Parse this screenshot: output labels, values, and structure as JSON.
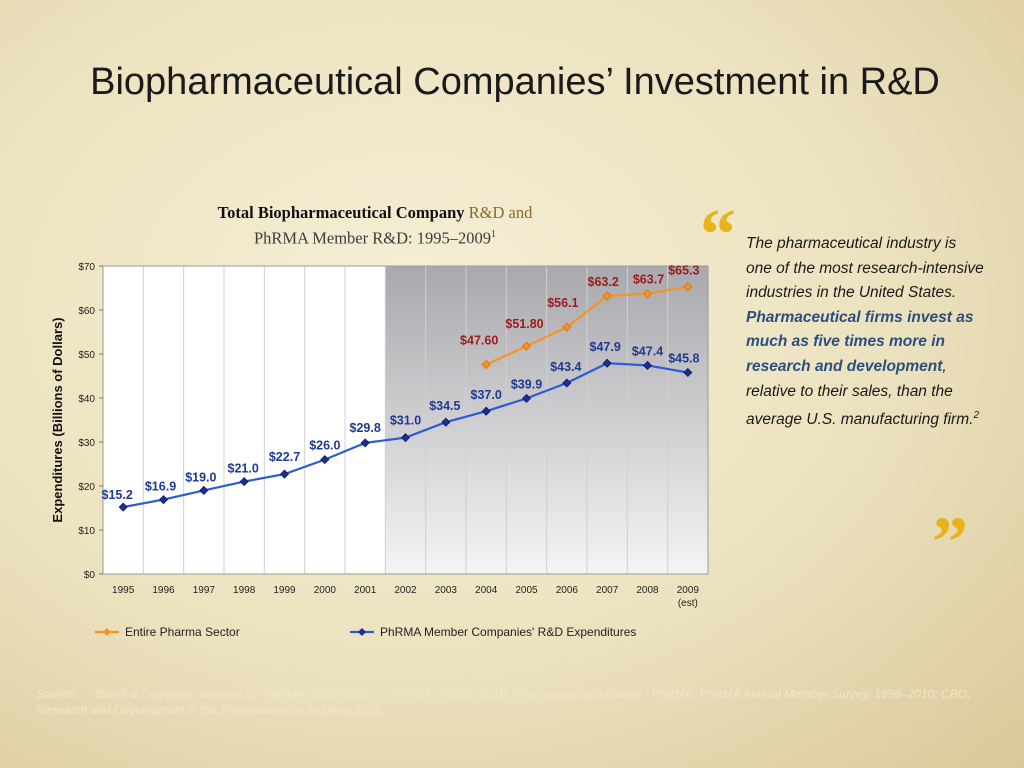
{
  "slide": {
    "title": "Biopharmaceutical Companies’ Investment in R&D"
  },
  "chart_header": {
    "line1_bold": "Total Biopharmaceutical Company",
    "line1_accent": " R&D and",
    "line2": "PhRMA Member R&D: 1995–2009",
    "line2_sup": "1"
  },
  "chart_data": {
    "type": "line",
    "ylabel": "Expenditures (Billions of Dollars)",
    "ylim": [
      0,
      70
    ],
    "yticks": [
      0,
      10,
      20,
      30,
      40,
      50,
      60,
      70
    ],
    "ytick_labels": [
      "$0",
      "$10",
      "$20",
      "$30",
      "$40",
      "$50",
      "$60",
      "$70"
    ],
    "categories": [
      "1995",
      "1996",
      "1997",
      "1998",
      "1999",
      "2000",
      "2001",
      "2002",
      "2003",
      "2004",
      "2005",
      "2006",
      "2007",
      "2008",
      "2009"
    ],
    "category_sublabels": {
      "2009": "(est)"
    },
    "shaded_from": "2002",
    "grid": "vertical",
    "legend_position": "bottom",
    "series": [
      {
        "name": "Entire Pharma Sector",
        "color": "#f7941d",
        "label_color": "#9b1c1c",
        "marker": "diamond",
        "values": [
          null,
          null,
          null,
          null,
          null,
          null,
          null,
          null,
          null,
          47.6,
          51.8,
          56.1,
          63.2,
          63.7,
          65.3
        ],
        "labels": [
          null,
          null,
          null,
          null,
          null,
          null,
          null,
          null,
          null,
          "$47.60",
          "$51.80",
          "$56.1",
          "$63.2",
          "$63.7",
          "$65.3"
        ]
      },
      {
        "name": "PhRMA Member Companies' R&D Expenditures",
        "color": "#2d5bd6",
        "label_color": "#1f3a93",
        "marker": "diamond",
        "values": [
          15.2,
          16.9,
          19.0,
          21.0,
          22.7,
          26.0,
          29.8,
          31.0,
          34.5,
          37.0,
          39.9,
          43.4,
          47.9,
          47.4,
          45.8
        ],
        "labels": [
          "$15.2",
          "$16.9",
          "$19.0",
          "$21.0",
          "$22.7",
          "$26.0",
          "$29.8",
          "$31.0",
          "$34.5",
          "$37.0",
          "$39.9",
          "$43.4",
          "$47.9",
          "$47.4",
          "$45.8"
        ]
      }
    ]
  },
  "quote": {
    "text_a": "The pharmaceutical industry is one of the most research-intensive industries in the United States. ",
    "text_em": "Pharmaceutical firms invest as much as five times more in research and development",
    "text_b": ", relative to their sales, than the average U.S. manufacturing firm.",
    "sup": "2",
    "open_mark": "“",
    "close_mark": "”"
  },
  "footnote": {
    "text": "Source: … Burrill & Company; analysis for PhRMA, 2009–2010 … PhRMA, “Profile 2010, Pharmaceutical Industry,” PhRMA; PhRMA Annual Member Survey, 1996–2010; CBO, Research and Development in the Pharmaceutical Industry, 2006."
  },
  "colors": {
    "background": "#efe6c6",
    "accent_gold": "#e8b21a",
    "quote_blue": "#2a4f7f"
  }
}
